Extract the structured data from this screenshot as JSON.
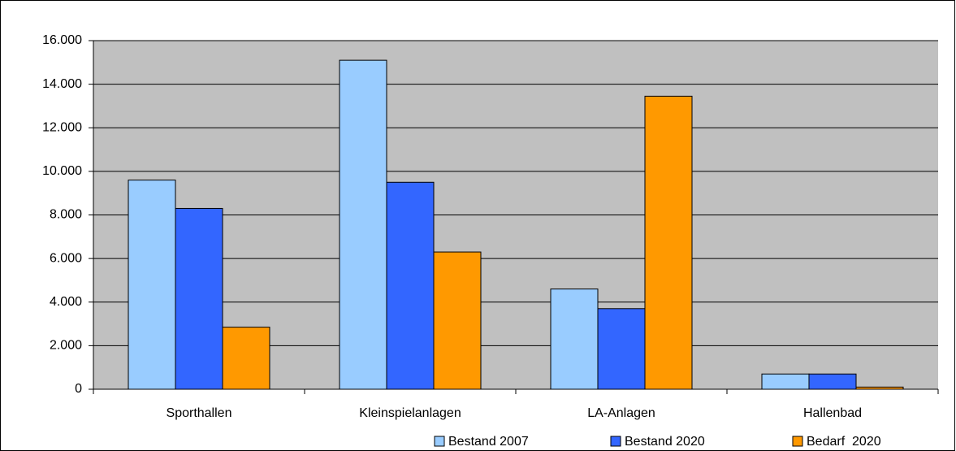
{
  "chart_data": {
    "type": "bar",
    "categories": [
      "Sporthallen",
      "Kleinspielanlagen",
      "LA-Anlagen",
      "Hallenbad"
    ],
    "series": [
      {
        "name": "Bestand 2007",
        "color": "#99ccff",
        "values": [
          9600,
          15100,
          4600,
          700
        ]
      },
      {
        "name": "Bestand 2020",
        "color": "#3366ff",
        "values": [
          8300,
          9500,
          3700,
          700
        ]
      },
      {
        "name": "Bedarf  2020",
        "color": "#ff9900",
        "values": [
          2850,
          6300,
          13450,
          100
        ]
      }
    ],
    "ylim": [
      0,
      16000
    ],
    "yticks": [
      0,
      {
        "value": 2000,
        "label": "2.000"
      },
      {
        "value": 4000,
        "label": "4.000"
      },
      {
        "value": 6000,
        "label": "6.000"
      },
      {
        "value": 8000,
        "label": "8.000"
      },
      {
        "value": 10000,
        "label": "10.000"
      },
      {
        "value": 12000,
        "label": "12.000"
      },
      {
        "value": 14000,
        "label": "14.000"
      },
      {
        "value": 16000,
        "label": "16.000"
      }
    ],
    "grid": true,
    "legend": "bottom",
    "plot_background": "#c0c0c0"
  }
}
